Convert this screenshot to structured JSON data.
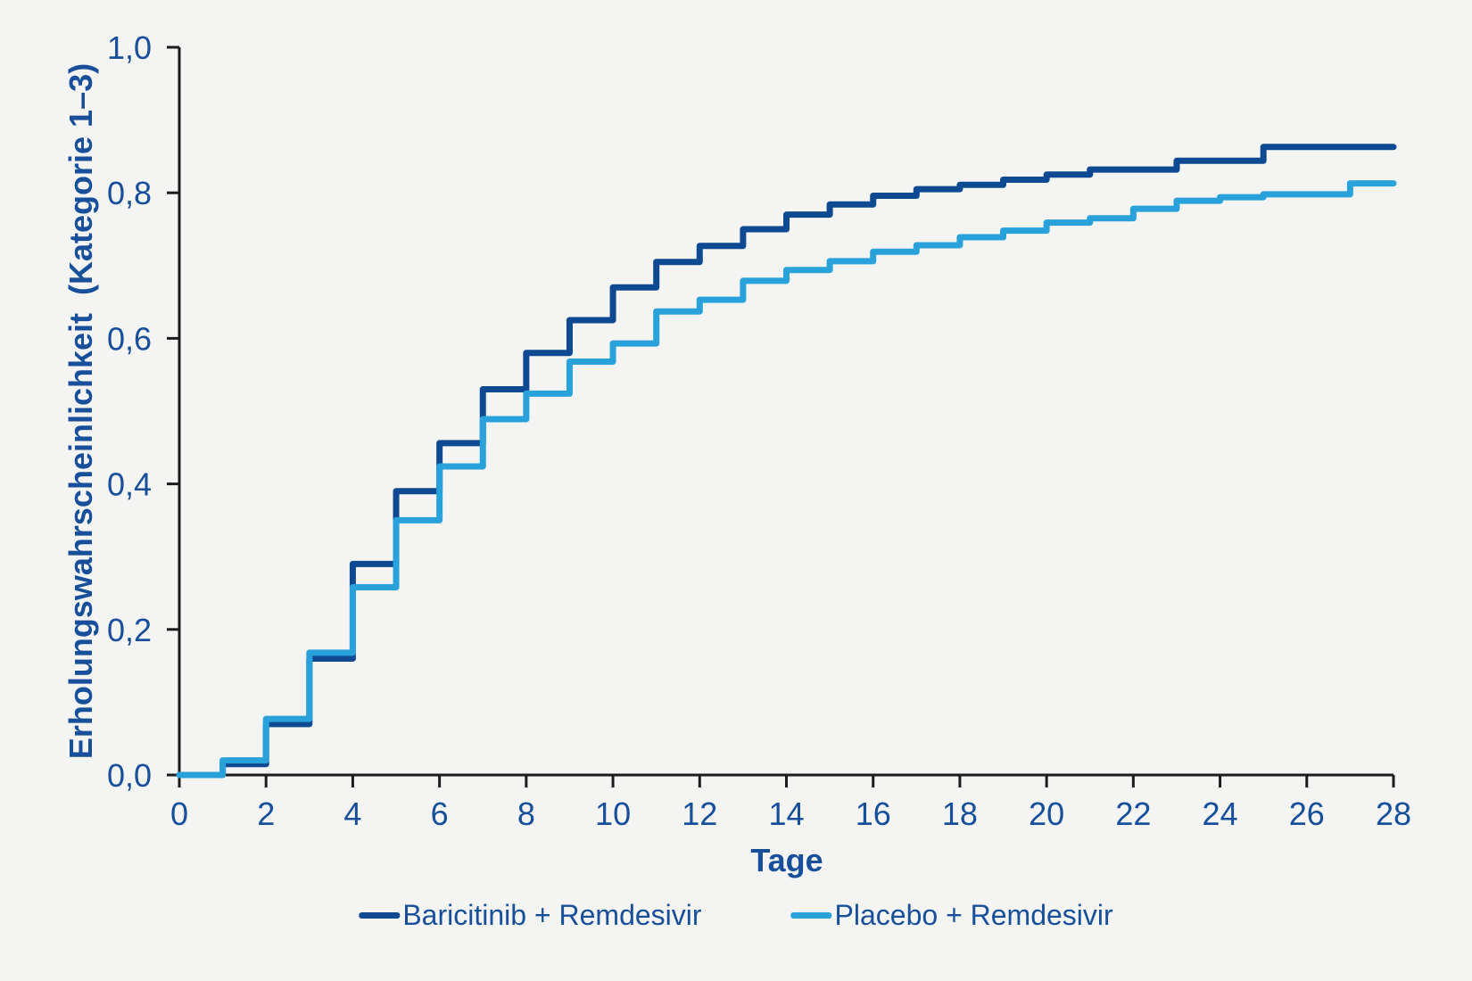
{
  "figure": {
    "background": "#f4f4f2",
    "text_color": "#174f9b",
    "axis_color": "#1c1c1c",
    "x_axis_title": "Tage",
    "y_axis_title": "Erholungswahrscheinlichkeit  (Kategorie 1–3)"
  },
  "legend": {
    "items": [
      {
        "label": "Baricitinib + Remdesivir",
        "color": "#0d4a91"
      },
      {
        "label": "Placebo + Remdesivir",
        "color": "#29a2db"
      }
    ]
  },
  "chart_data": {
    "type": "line",
    "subtype": "kaplan-meier-step",
    "title": "",
    "xlabel": "Tage",
    "ylabel": "Erholungswahrscheinlichkeit (Kategorie 1–3)",
    "xlim": [
      0,
      28
    ],
    "ylim": [
      0,
      1
    ],
    "grid": false,
    "legend_position": "bottom-center",
    "x_ticks": [
      0,
      2,
      4,
      6,
      8,
      10,
      12,
      14,
      16,
      18,
      20,
      22,
      24,
      26,
      28
    ],
    "x_tick_labels": [
      "0",
      "2",
      "4",
      "6",
      "8",
      "10",
      "12",
      "14",
      "16",
      "18",
      "20",
      "22",
      "24",
      "26",
      "28"
    ],
    "y_ticks": [
      0,
      0.2,
      0.4,
      0.6,
      0.8,
      1.0
    ],
    "y_tick_labels": [
      "0,0",
      "0,2",
      "0,4",
      "0,6",
      "0,8",
      "1,0"
    ],
    "series": [
      {
        "name": "Baricitinib + Remdesivir",
        "color": "#0d4a91",
        "start": [
          0,
          0
        ],
        "end_x": 28,
        "steps": [
          [
            1,
            0.015
          ],
          [
            2,
            0.07
          ],
          [
            3,
            0.16
          ],
          [
            4,
            0.29
          ],
          [
            5,
            0.39
          ],
          [
            6,
            0.456
          ],
          [
            7,
            0.53
          ],
          [
            8,
            0.58
          ],
          [
            9,
            0.625
          ],
          [
            10,
            0.67
          ],
          [
            11,
            0.705
          ],
          [
            12,
            0.727
          ],
          [
            13,
            0.75
          ],
          [
            14,
            0.77
          ],
          [
            15,
            0.784
          ],
          [
            16,
            0.796
          ],
          [
            17,
            0.805
          ],
          [
            18,
            0.811
          ],
          [
            19,
            0.818
          ],
          [
            20,
            0.825
          ],
          [
            21,
            0.832
          ],
          [
            23,
            0.844
          ],
          [
            25,
            0.863
          ]
        ]
      },
      {
        "name": "Placebo + Remdesivir",
        "color": "#29a2db",
        "start": [
          0,
          0
        ],
        "end_x": 28,
        "steps": [
          [
            1,
            0.02
          ],
          [
            2,
            0.077
          ],
          [
            3,
            0.168
          ],
          [
            4,
            0.258
          ],
          [
            5,
            0.35
          ],
          [
            6,
            0.424
          ],
          [
            7,
            0.489
          ],
          [
            8,
            0.524
          ],
          [
            9,
            0.568
          ],
          [
            10,
            0.593
          ],
          [
            11,
            0.637
          ],
          [
            12,
            0.653
          ],
          [
            13,
            0.679
          ],
          [
            14,
            0.694
          ],
          [
            15,
            0.706
          ],
          [
            16,
            0.719
          ],
          [
            17,
            0.728
          ],
          [
            18,
            0.739
          ],
          [
            19,
            0.748
          ],
          [
            20,
            0.759
          ],
          [
            21,
            0.765
          ],
          [
            22,
            0.778
          ],
          [
            23,
            0.789
          ],
          [
            24,
            0.794
          ],
          [
            25,
            0.798
          ],
          [
            27,
            0.813
          ]
        ]
      }
    ]
  }
}
